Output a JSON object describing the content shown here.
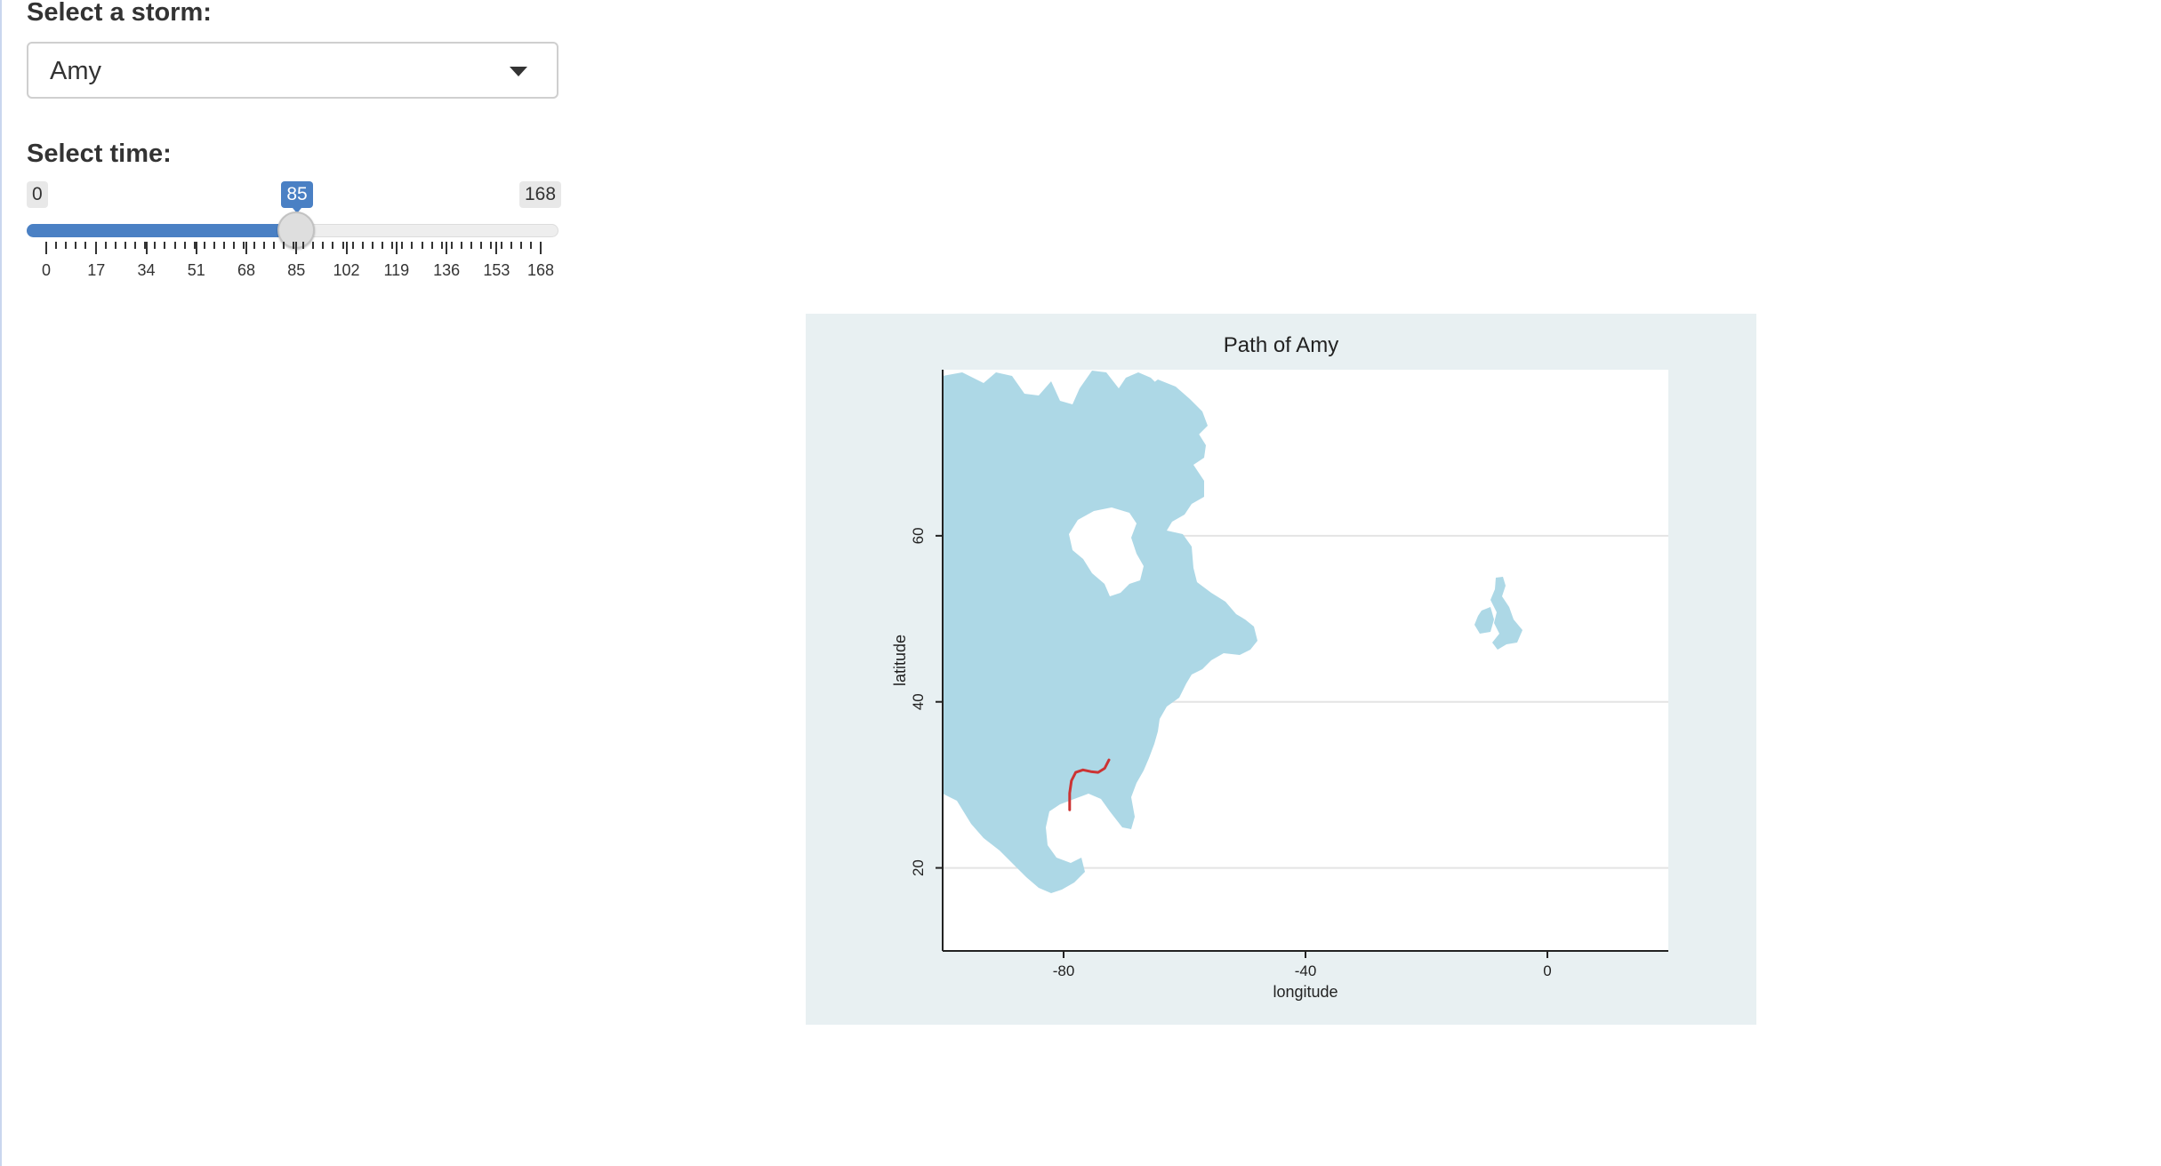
{
  "controls": {
    "storm_label": "Select a storm:",
    "storm_selected": "Amy",
    "time_label": "Select time:",
    "slider": {
      "min": 0,
      "max": 168,
      "value": 85,
      "min_label": "0",
      "max_label": "168",
      "value_label": "85",
      "tick_labels": [
        "0",
        "17",
        "34",
        "51",
        "68",
        "85",
        "102",
        "119",
        "136",
        "153",
        "168"
      ],
      "accent": "#4a80c4"
    }
  },
  "chart_data": {
    "type": "line",
    "title": "Path of Amy",
    "xlabel": "longitude",
    "ylabel": "latitude",
    "xlim": [
      -100,
      20
    ],
    "ylim": [
      10,
      80
    ],
    "x_ticks": [
      "-80",
      "-40",
      "0"
    ],
    "y_ticks": [
      "20",
      "40",
      "60"
    ],
    "background": "#e8f0f2",
    "land_color": "#add8e6",
    "series": [
      {
        "color": "#cc3333",
        "points": [
          [
            -79.0,
            27.0
          ],
          [
            -79.0,
            29.0
          ],
          [
            -78.7,
            30.5
          ],
          [
            -78.0,
            31.5
          ],
          [
            -76.8,
            31.8
          ],
          [
            -75.5,
            31.6
          ],
          [
            -74.3,
            31.5
          ],
          [
            -73.2,
            32.0
          ],
          [
            -72.5,
            33.0
          ]
        ]
      }
    ]
  }
}
